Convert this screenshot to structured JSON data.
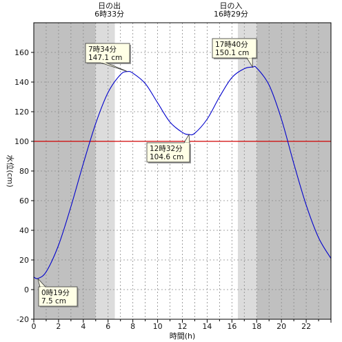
{
  "chart_data": {
    "type": "line",
    "title": "",
    "xlabel": "時間(h)",
    "ylabel": "水位(cm)",
    "xlim": [
      0,
      24
    ],
    "ylim": [
      -20,
      180
    ],
    "x_ticks": [
      0,
      2,
      4,
      6,
      8,
      10,
      12,
      14,
      16,
      18,
      20,
      22
    ],
    "y_ticks": [
      -20,
      0,
      20,
      40,
      60,
      80,
      100,
      120,
      140,
      160
    ],
    "grid": true,
    "reference_line": {
      "y": 100,
      "color": "#d00000"
    },
    "sunrise": {
      "label": "日の出",
      "time": "6時33分",
      "hour": 6.55
    },
    "sunset": {
      "label": "日の入",
      "time": "16時29分",
      "hour": 16.48
    },
    "twilight_start": 5.0,
    "twilight_end": 18.0,
    "colors": {
      "night": "#c0c0c0",
      "twilight": "#dcdcdc",
      "day": "#ffffff",
      "curve": "#0000cc"
    },
    "annotations": [
      {
        "time": "0時19分",
        "value": "7.5 cm",
        "hour": 0.32,
        "level": 7.5
      },
      {
        "time": "7時34分",
        "value": "147.1 cm",
        "hour": 7.57,
        "level": 147.1
      },
      {
        "time": "12時32分",
        "value": "104.6 cm",
        "hour": 12.53,
        "level": 104.6
      },
      {
        "time": "17時40分",
        "value": "150.1 cm",
        "hour": 17.67,
        "level": 150.1
      }
    ],
    "series": [
      {
        "x": [
          0,
          0.32,
          1,
          2,
          3,
          4,
          5,
          6,
          7,
          7.57,
          8,
          9,
          10,
          11,
          12,
          12.53,
          13,
          14,
          15,
          16,
          17,
          17.67,
          18,
          19,
          20,
          21,
          22,
          23,
          24
        ],
        "values": [
          8.5,
          7.5,
          12,
          30,
          56,
          85,
          112,
          133,
          145,
          147.1,
          146,
          139,
          126,
          113,
          106,
          104.6,
          105.5,
          115,
          130,
          143,
          149,
          150.1,
          149.5,
          138,
          115,
          85,
          57,
          35,
          21
        ]
      }
    ]
  }
}
